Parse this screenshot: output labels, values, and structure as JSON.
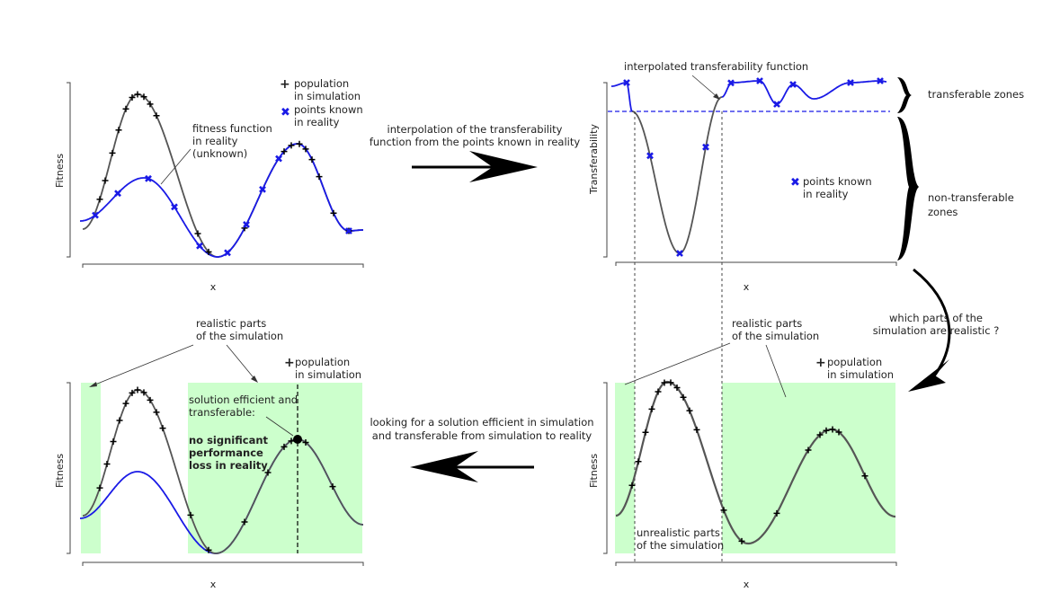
{
  "panels": {
    "top_left": {
      "ylabel": "Fitness",
      "xlabel": "x",
      "legend_sim": "population",
      "legend_sim2": "in simulation",
      "legend_real": "points known",
      "legend_real2": "in reality",
      "note1": "fitness function",
      "note2": "in reality",
      "note3": "(unknown)"
    },
    "top_right": {
      "ylabel": "Transferability",
      "xlabel": "x",
      "note": "interpolated transferability function",
      "legend_real": "points known",
      "legend_real2": "in reality",
      "zone_transferable": "transferable zones",
      "zone_non1": "non-transferable",
      "zone_non2": "zones"
    },
    "bottom_right": {
      "ylabel": "Fitness",
      "xlabel": "x",
      "realistic1": "realistic parts",
      "realistic2": "of the simulation",
      "legend_sim": "population",
      "legend_sim2": "in simulation",
      "unrealistic1": "unrealistic parts",
      "unrealistic2": "of the simulation"
    },
    "bottom_left": {
      "ylabel": "Fitness",
      "xlabel": "x",
      "realistic1": "realistic parts",
      "realistic2": "of the simulation",
      "legend_sim": "population",
      "legend_sim2": "in simulation",
      "sol1": "solution efficient and",
      "sol2": "transferable:",
      "bold1": "no significant",
      "bold2": "performance",
      "bold3": "loss in reality"
    }
  },
  "arrows": {
    "top_1": "interpolation of the transferability",
    "top_2": "function from the points known in reality",
    "right_1": "which parts  of  the",
    "right_2": "simulation are realistic ?",
    "bottom_1": "looking for a solution efficient in simulation",
    "bottom_2": "and transferable from simulation to reality"
  },
  "colors": {
    "simulation": "#555555",
    "reality": "#1a1ae6",
    "realistic_zone": "#ccffcc",
    "axis": "#444444"
  },
  "icons": {
    "population_marker": "plus",
    "reality_marker": "x-cross"
  }
}
